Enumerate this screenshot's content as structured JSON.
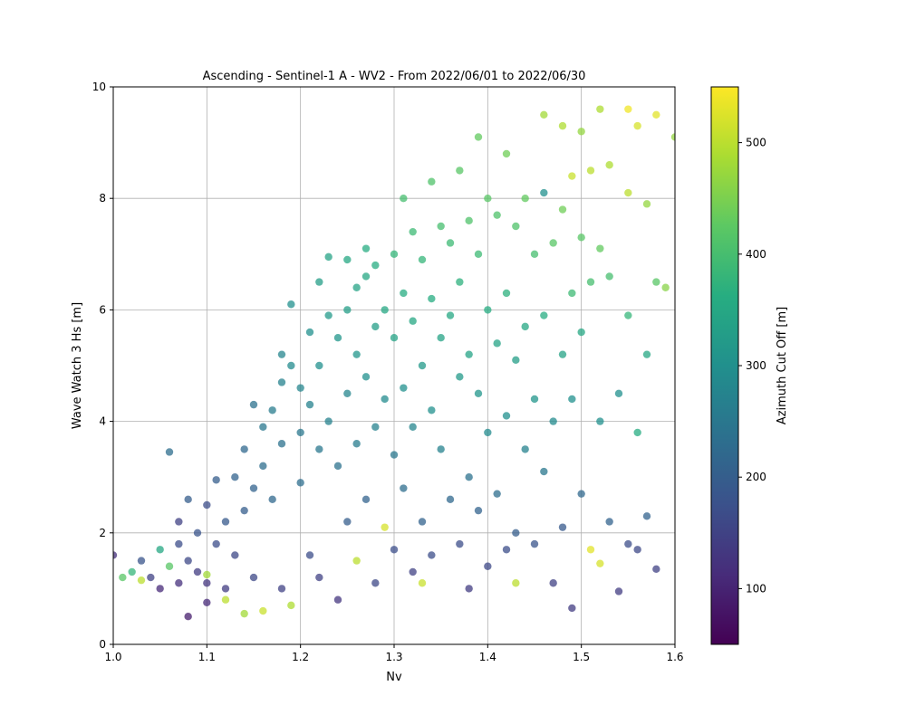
{
  "chart_data": {
    "type": "scatter",
    "title": "Ascending - Sentinel-1 A - WV2 - From 2022/06/01 to 2022/06/30",
    "xlabel": "Nv",
    "ylabel": "Wave Watch 3 Hs [m]",
    "xlim": [
      1.0,
      1.6
    ],
    "ylim": [
      0,
      10
    ],
    "x_ticks": [
      "1.0",
      "1.1",
      "1.2",
      "1.3",
      "1.4",
      "1.5",
      "1.6"
    ],
    "y_ticks": [
      "0",
      "2",
      "4",
      "6",
      "8",
      "10"
    ],
    "grid": true,
    "colorbar": {
      "label": "Azimuth Cut Off [m]",
      "range": [
        50,
        550
      ],
      "ticks": [
        "100",
        "200",
        "300",
        "400",
        "500"
      ],
      "colormap": [
        "#440154",
        "#472c7a",
        "#3b518b",
        "#2c718e",
        "#21908d",
        "#27ad81",
        "#5cc863",
        "#aadc32",
        "#fde725"
      ]
    },
    "point_color_encoding": "Azimuth Cut Off [m]",
    "series": [
      {
        "points": [
          [
            1.0,
            1.6,
            120
          ],
          [
            1.01,
            1.2,
            420
          ],
          [
            1.02,
            1.3,
            380
          ],
          [
            1.03,
            1.15,
            500
          ],
          [
            1.03,
            1.5,
            180
          ],
          [
            1.04,
            1.2,
            150
          ],
          [
            1.05,
            1.7,
            350
          ],
          [
            1.05,
            1.0,
            110
          ],
          [
            1.06,
            3.45,
            230
          ],
          [
            1.06,
            1.4,
            420
          ],
          [
            1.07,
            2.2,
            150
          ],
          [
            1.07,
            1.8,
            170
          ],
          [
            1.07,
            1.1,
            120
          ],
          [
            1.08,
            2.6,
            200
          ],
          [
            1.08,
            0.5,
            90
          ],
          [
            1.08,
            1.5,
            160
          ],
          [
            1.09,
            2.0,
            180
          ],
          [
            1.09,
            1.3,
            140
          ],
          [
            1.1,
            2.5,
            170
          ],
          [
            1.1,
            1.1,
            130
          ],
          [
            1.1,
            0.75,
            110
          ],
          [
            1.1,
            1.25,
            480
          ],
          [
            1.11,
            2.95,
            200
          ],
          [
            1.11,
            1.8,
            170
          ],
          [
            1.12,
            2.2,
            190
          ],
          [
            1.12,
            1.0,
            140
          ],
          [
            1.12,
            0.8,
            500
          ],
          [
            1.13,
            3.0,
            210
          ],
          [
            1.13,
            1.6,
            160
          ],
          [
            1.14,
            3.5,
            220
          ],
          [
            1.14,
            2.4,
            200
          ],
          [
            1.14,
            0.55,
            480
          ],
          [
            1.15,
            4.3,
            240
          ],
          [
            1.15,
            2.8,
            210
          ],
          [
            1.15,
            1.2,
            160
          ],
          [
            1.16,
            3.9,
            250
          ],
          [
            1.16,
            3.2,
            230
          ],
          [
            1.16,
            0.6,
            510
          ],
          [
            1.17,
            4.2,
            260
          ],
          [
            1.17,
            2.6,
            220
          ],
          [
            1.18,
            5.2,
            280
          ],
          [
            1.18,
            4.7,
            270
          ],
          [
            1.18,
            3.6,
            240
          ],
          [
            1.18,
            1.0,
            150
          ],
          [
            1.19,
            6.1,
            300
          ],
          [
            1.19,
            5.0,
            290
          ],
          [
            1.19,
            0.7,
            490
          ],
          [
            1.2,
            4.6,
            280
          ],
          [
            1.2,
            3.8,
            250
          ],
          [
            1.2,
            2.9,
            230
          ],
          [
            1.21,
            5.6,
            300
          ],
          [
            1.21,
            4.3,
            270
          ],
          [
            1.21,
            1.6,
            170
          ],
          [
            1.22,
            6.5,
            330
          ],
          [
            1.22,
            5.0,
            300
          ],
          [
            1.22,
            3.5,
            250
          ],
          [
            1.22,
            1.2,
            150
          ],
          [
            1.23,
            6.95,
            340
          ],
          [
            1.23,
            5.9,
            320
          ],
          [
            1.23,
            4.0,
            270
          ],
          [
            1.24,
            5.5,
            310
          ],
          [
            1.24,
            3.2,
            240
          ],
          [
            1.24,
            0.8,
            130
          ],
          [
            1.25,
            6.9,
            350
          ],
          [
            1.25,
            6.0,
            330
          ],
          [
            1.25,
            4.5,
            280
          ],
          [
            1.25,
            2.2,
            200
          ],
          [
            1.26,
            6.4,
            340
          ],
          [
            1.26,
            5.2,
            310
          ],
          [
            1.26,
            3.6,
            260
          ],
          [
            1.26,
            1.5,
            500
          ],
          [
            1.27,
            7.1,
            360
          ],
          [
            1.27,
            6.6,
            350
          ],
          [
            1.27,
            4.8,
            300
          ],
          [
            1.27,
            2.6,
            210
          ],
          [
            1.28,
            6.8,
            360
          ],
          [
            1.28,
            5.7,
            330
          ],
          [
            1.28,
            3.9,
            270
          ],
          [
            1.28,
            1.1,
            160
          ],
          [
            1.29,
            6.0,
            350
          ],
          [
            1.29,
            4.4,
            290
          ],
          [
            1.29,
            2.1,
            520
          ],
          [
            1.3,
            7.0,
            380
          ],
          [
            1.3,
            5.5,
            340
          ],
          [
            1.3,
            3.4,
            250
          ],
          [
            1.3,
            1.7,
            170
          ],
          [
            1.31,
            8.0,
            400
          ],
          [
            1.31,
            6.3,
            360
          ],
          [
            1.31,
            4.6,
            300
          ],
          [
            1.31,
            2.8,
            230
          ],
          [
            1.32,
            7.4,
            390
          ],
          [
            1.32,
            5.8,
            350
          ],
          [
            1.32,
            3.9,
            280
          ],
          [
            1.32,
            1.3,
            150
          ],
          [
            1.33,
            6.9,
            380
          ],
          [
            1.33,
            5.0,
            320
          ],
          [
            1.33,
            2.2,
            210
          ],
          [
            1.33,
            1.1,
            510
          ],
          [
            1.34,
            8.3,
            410
          ],
          [
            1.34,
            6.2,
            360
          ],
          [
            1.34,
            4.2,
            300
          ],
          [
            1.34,
            1.6,
            170
          ],
          [
            1.35,
            7.5,
            400
          ],
          [
            1.35,
            5.5,
            340
          ],
          [
            1.35,
            3.5,
            270
          ],
          [
            1.36,
            7.2,
            390
          ],
          [
            1.36,
            5.9,
            350
          ],
          [
            1.36,
            2.6,
            220
          ],
          [
            1.37,
            8.5,
            420
          ],
          [
            1.37,
            6.5,
            370
          ],
          [
            1.37,
            4.8,
            320
          ],
          [
            1.37,
            1.8,
            170
          ],
          [
            1.38,
            7.6,
            410
          ],
          [
            1.38,
            5.2,
            340
          ],
          [
            1.38,
            3.0,
            240
          ],
          [
            1.38,
            1.0,
            140
          ],
          [
            1.39,
            9.1,
            430
          ],
          [
            1.39,
            7.0,
            390
          ],
          [
            1.39,
            4.5,
            310
          ],
          [
            1.39,
            2.4,
            210
          ],
          [
            1.4,
            8.0,
            420
          ],
          [
            1.4,
            6.0,
            360
          ],
          [
            1.4,
            3.8,
            290
          ],
          [
            1.4,
            1.4,
            160
          ],
          [
            1.41,
            7.7,
            410
          ],
          [
            1.41,
            5.4,
            340
          ],
          [
            1.41,
            2.7,
            230
          ],
          [
            1.42,
            8.8,
            440
          ],
          [
            1.42,
            6.3,
            370
          ],
          [
            1.42,
            4.1,
            300
          ],
          [
            1.42,
            1.7,
            170
          ],
          [
            1.43,
            7.5,
            410
          ],
          [
            1.43,
            5.1,
            330
          ],
          [
            1.43,
            2.0,
            200
          ],
          [
            1.43,
            1.1,
            500
          ],
          [
            1.44,
            8.0,
            430
          ],
          [
            1.44,
            5.7,
            350
          ],
          [
            1.44,
            3.5,
            270
          ],
          [
            1.45,
            7.0,
            400
          ],
          [
            1.45,
            4.4,
            310
          ],
          [
            1.45,
            1.8,
            180
          ],
          [
            1.46,
            9.5,
            480
          ],
          [
            1.46,
            8.1,
            300
          ],
          [
            1.46,
            5.9,
            360
          ],
          [
            1.46,
            3.1,
            250
          ],
          [
            1.47,
            7.2,
            420
          ],
          [
            1.47,
            4.0,
            290
          ],
          [
            1.47,
            1.1,
            150
          ],
          [
            1.48,
            9.3,
            490
          ],
          [
            1.48,
            7.8,
            440
          ],
          [
            1.48,
            5.2,
            340
          ],
          [
            1.48,
            2.1,
            190
          ],
          [
            1.49,
            8.4,
            510
          ],
          [
            1.49,
            6.3,
            390
          ],
          [
            1.49,
            4.4,
            300
          ],
          [
            1.49,
            0.65,
            140
          ],
          [
            1.5,
            9.2,
            470
          ],
          [
            1.5,
            7.3,
            420
          ],
          [
            1.5,
            5.6,
            350
          ],
          [
            1.5,
            2.7,
            220
          ],
          [
            1.51,
            8.5,
            500
          ],
          [
            1.51,
            6.5,
            400
          ],
          [
            1.51,
            1.7,
            530
          ],
          [
            1.52,
            9.6,
            490
          ],
          [
            1.52,
            7.1,
            430
          ],
          [
            1.52,
            4.0,
            300
          ],
          [
            1.52,
            1.45,
            520
          ],
          [
            1.53,
            8.6,
            490
          ],
          [
            1.53,
            6.6,
            400
          ],
          [
            1.53,
            2.2,
            210
          ],
          [
            1.54,
            4.5,
            300
          ],
          [
            1.54,
            0.95,
            140
          ],
          [
            1.55,
            9.6,
            540
          ],
          [
            1.55,
            8.1,
            500
          ],
          [
            1.55,
            5.9,
            380
          ],
          [
            1.55,
            1.8,
            170
          ],
          [
            1.56,
            9.3,
            520
          ],
          [
            1.56,
            3.8,
            360
          ],
          [
            1.56,
            1.7,
            160
          ],
          [
            1.57,
            7.9,
            470
          ],
          [
            1.57,
            5.2,
            350
          ],
          [
            1.57,
            2.3,
            210
          ],
          [
            1.58,
            9.5,
            530
          ],
          [
            1.58,
            6.5,
            420
          ],
          [
            1.58,
            1.35,
            150
          ],
          [
            1.59,
            6.4,
            460
          ],
          [
            1.6,
            9.1,
            470
          ]
        ]
      }
    ]
  }
}
